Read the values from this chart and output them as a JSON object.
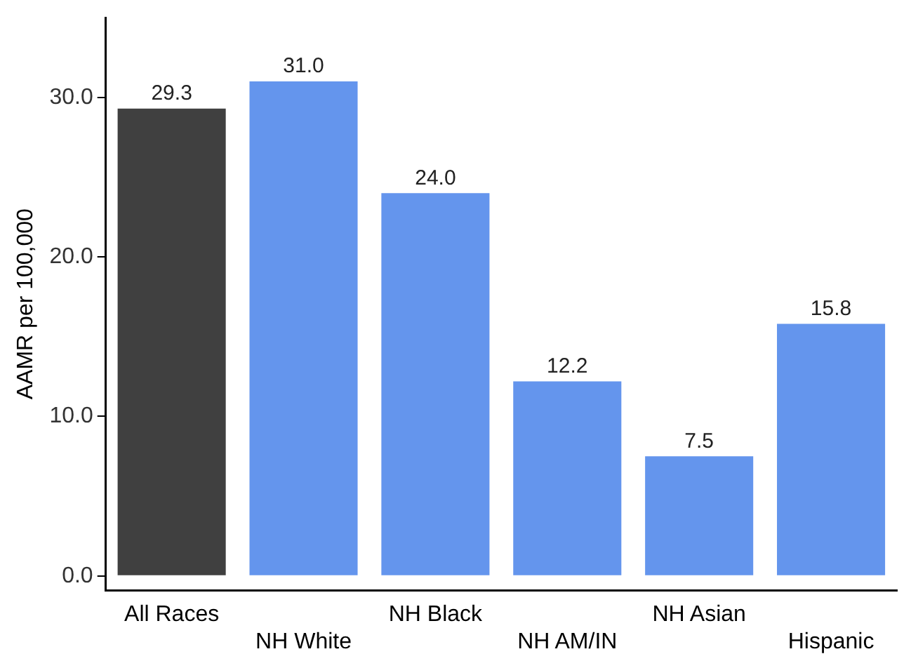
{
  "chart_data": {
    "type": "bar",
    "ylabel": "AAMR per 100,000",
    "categories": [
      "All Races",
      "NH White",
      "NH Black",
      "NH AM/IN",
      "NH Asian",
      "Hispanic"
    ],
    "values": [
      29.3,
      31.0,
      24.0,
      12.2,
      7.5,
      15.8
    ],
    "value_labels": [
      "29.3",
      "31.0",
      "24.0",
      "12.2",
      "7.5",
      "15.8"
    ],
    "colors": [
      "#404040",
      "#6495ed",
      "#6495ed",
      "#6495ed",
      "#6495ed",
      "#6495ed"
    ],
    "ylim": [
      -0.9,
      35
    ],
    "yticks": [
      {
        "value": 0,
        "label": "0.0"
      },
      {
        "value": 10,
        "label": "10.0"
      },
      {
        "value": 20,
        "label": "20.0"
      },
      {
        "value": 30,
        "label": "30.0"
      }
    ],
    "grid": false,
    "legend": false
  }
}
